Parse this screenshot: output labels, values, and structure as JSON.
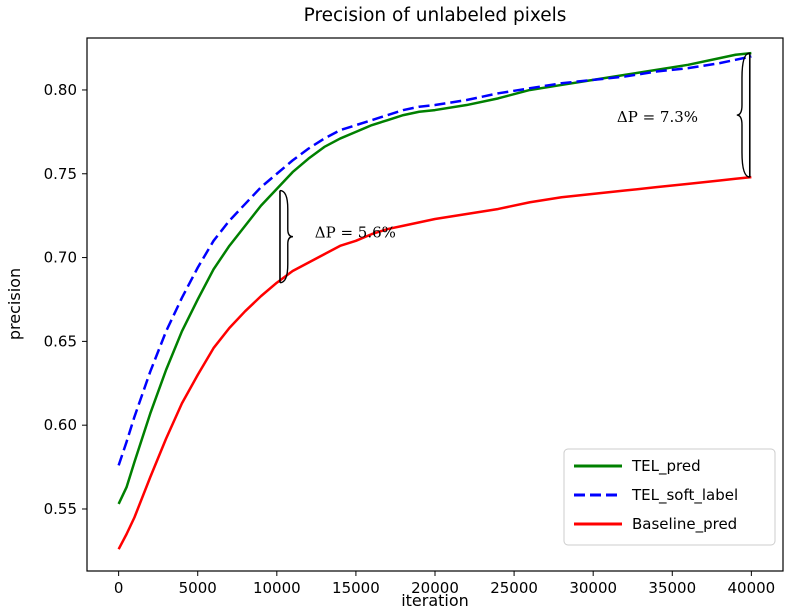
{
  "chart_data": {
    "type": "line",
    "title": "Precision of unlabeled pixels",
    "xlabel": "iteration",
    "ylabel": "precision",
    "xlim": [
      -2000,
      42000
    ],
    "ylim": [
      0.513,
      0.831
    ],
    "xticks": [
      0,
      5000,
      10000,
      15000,
      20000,
      25000,
      30000,
      35000,
      40000
    ],
    "xtick_labels": [
      "0",
      "5000",
      "10000",
      "15000",
      "20000",
      "25000",
      "30000",
      "35000",
      "40000"
    ],
    "yticks": [
      0.55,
      0.6,
      0.65,
      0.7,
      0.75,
      0.8
    ],
    "ytick_labels": [
      "0.55",
      "0.60",
      "0.65",
      "0.70",
      "0.75",
      "0.80"
    ],
    "grid": false,
    "legend_position": "lower-right",
    "series": [
      {
        "name": "TEL_pred",
        "color": "#008000",
        "style": "solid",
        "x": [
          0,
          500,
          1000,
          2000,
          3000,
          4000,
          5000,
          6000,
          7000,
          8000,
          9000,
          10000,
          11000,
          12000,
          13000,
          14000,
          15000,
          16000,
          17000,
          18000,
          19000,
          20000,
          22000,
          24000,
          26000,
          28000,
          30000,
          32000,
          34000,
          36000,
          38000,
          39000,
          40000
        ],
        "y": [
          0.553,
          0.563,
          0.578,
          0.607,
          0.633,
          0.656,
          0.675,
          0.693,
          0.707,
          0.719,
          0.731,
          0.741,
          0.751,
          0.759,
          0.766,
          0.771,
          0.775,
          0.779,
          0.782,
          0.785,
          0.787,
          0.788,
          0.791,
          0.795,
          0.8,
          0.803,
          0.806,
          0.809,
          0.812,
          0.815,
          0.819,
          0.821,
          0.822
        ]
      },
      {
        "name": "TEL_soft_label",
        "color": "#0000ff",
        "style": "dashed",
        "x": [
          0,
          500,
          1000,
          2000,
          3000,
          4000,
          5000,
          6000,
          7000,
          8000,
          9000,
          10000,
          11000,
          12000,
          13000,
          14000,
          15000,
          16000,
          17000,
          18000,
          19000,
          20000,
          22000,
          24000,
          26000,
          28000,
          30000,
          32000,
          34000,
          36000,
          38000,
          39000,
          40000
        ],
        "y": [
          0.576,
          0.59,
          0.605,
          0.632,
          0.656,
          0.676,
          0.694,
          0.71,
          0.722,
          0.732,
          0.742,
          0.75,
          0.758,
          0.765,
          0.771,
          0.776,
          0.779,
          0.782,
          0.785,
          0.788,
          0.79,
          0.791,
          0.794,
          0.798,
          0.801,
          0.804,
          0.806,
          0.808,
          0.811,
          0.813,
          0.816,
          0.818,
          0.82
        ]
      },
      {
        "name": "Baseline_pred",
        "color": "#ff0000",
        "style": "solid",
        "x": [
          0,
          500,
          1000,
          2000,
          3000,
          4000,
          5000,
          6000,
          7000,
          8000,
          9000,
          10000,
          11000,
          12000,
          13000,
          14000,
          15000,
          16000,
          17000,
          18000,
          19000,
          20000,
          22000,
          24000,
          26000,
          28000,
          30000,
          32000,
          34000,
          36000,
          38000,
          39000,
          40000
        ],
        "y": [
          0.526,
          0.535,
          0.545,
          0.569,
          0.592,
          0.613,
          0.63,
          0.646,
          0.658,
          0.668,
          0.677,
          0.685,
          0.692,
          0.697,
          0.702,
          0.707,
          0.71,
          0.714,
          0.717,
          0.719,
          0.721,
          0.723,
          0.726,
          0.729,
          0.733,
          0.736,
          0.738,
          0.74,
          0.742,
          0.744,
          0.746,
          0.747,
          0.748
        ]
      }
    ],
    "annotations": [
      {
        "text": "ΔP = 5.6%",
        "x": 10200,
        "y_low": 0.685,
        "y_high": 0.74,
        "brace_side": "right",
        "text_x": 12400,
        "text_y": 0.715
      },
      {
        "text": "ΔP = 7.3%",
        "x": 39900,
        "y_low": 0.748,
        "y_high": 0.822,
        "brace_side": "left",
        "text_x": 31500,
        "text_y": 0.784
      }
    ]
  }
}
